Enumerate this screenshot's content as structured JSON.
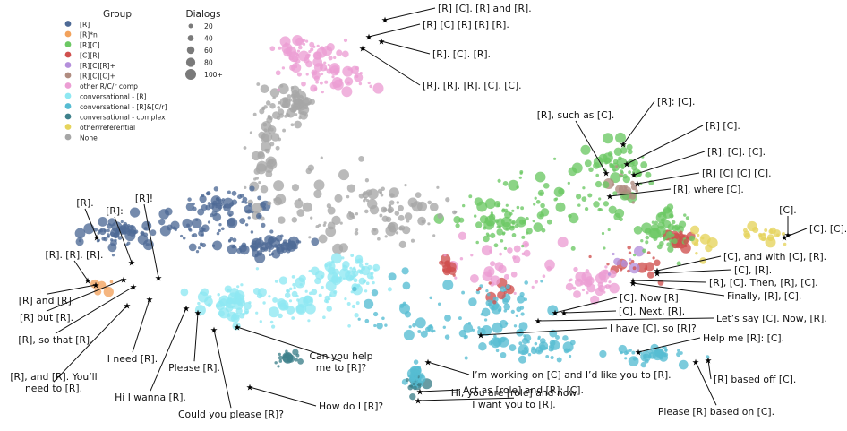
{
  "chart_data": {
    "type": "scatter",
    "title": "",
    "xlabel": "",
    "ylabel": "",
    "axes_visible": false,
    "legend_placement": "top-left",
    "group_legend": {
      "title": "Group",
      "entries": [
        {
          "label": "[R]",
          "color": "#4e6a96"
        },
        {
          "label": "[R]*n",
          "color": "#f2a25c"
        },
        {
          "label": "[R][C]",
          "color": "#6cc864"
        },
        {
          "label": "[C][R]",
          "color": "#d0504e"
        },
        {
          "label": "[R][C][R]+",
          "color": "#b48fdb"
        },
        {
          "label": "[R][C][C]+",
          "color": "#b08c80"
        },
        {
          "label": "other R/C/r comp",
          "color": "#ec9ed4"
        },
        {
          "label": "conversational - [R]",
          "color": "#8ee8f2"
        },
        {
          "label": "conversational - [R]&[C/r]",
          "color": "#56bcd2"
        },
        {
          "label": "conversational - complex",
          "color": "#3e808a"
        },
        {
          "label": "other/referential",
          "color": "#e6d45c"
        },
        {
          "label": "None",
          "color": "#a6a6a6"
        }
      ]
    },
    "size_legend": {
      "title": "Dialogs",
      "entries": [
        {
          "label": "20",
          "value": 20
        },
        {
          "label": "40",
          "value": 40
        },
        {
          "label": "60",
          "value": 60
        },
        {
          "label": "80",
          "value": 80
        },
        {
          "label": "100+",
          "value": 100
        }
      ]
    },
    "annotations": [
      {
        "text": "[R] [C]. [R] and [R]."
      },
      {
        "text": "[R] [C] [R] [R] [R]."
      },
      {
        "text": "[R]. [C]. [R]."
      },
      {
        "text": "[R]. [R]. [R]. [C]. [C]."
      },
      {
        "text": "[R], such as [C]."
      },
      {
        "text": "[R]: [C]."
      },
      {
        "text": "[R] [C]."
      },
      {
        "text": "[R]. [C]. [C]."
      },
      {
        "text": "[R] [C] [C] [C]."
      },
      {
        "text": "[R], where [C]."
      },
      {
        "text": "[C]."
      },
      {
        "text": "[C]. [C]."
      },
      {
        "text": "[C], and with [C], [R]."
      },
      {
        "text": "[C], [R]."
      },
      {
        "text": "[R], [C]. Then, [R], [C]."
      },
      {
        "text": "Finally, [R], [C]."
      },
      {
        "text": "[C]. Now [R]."
      },
      {
        "text": "[C]. Next, [R]."
      },
      {
        "text": "Let’s say [C]. Now, [R]."
      },
      {
        "text": "I have [C], so [R]?"
      },
      {
        "text": "Help me [R]: [C]."
      },
      {
        "text": "[R] based off [C]."
      },
      {
        "text": "Please [R] based on [C]."
      },
      {
        "text": "I’m working on [C] and I’d like you to [R]."
      },
      {
        "text": "Act as [role] and [R]: [C]."
      },
      {
        "text": "Hi, you are [role] and now I want you to [R]."
      },
      {
        "text": "How do I [R]?"
      },
      {
        "text": "Can you help me to [R]?"
      },
      {
        "text": "Could you please [R]?"
      },
      {
        "text": "Please [R]."
      },
      {
        "text": "Hi I wanna [R]."
      },
      {
        "text": "I need [R]."
      },
      {
        "text": "[R], and [R]. You’ll need to [R]."
      },
      {
        "text": "[R], so that [R]."
      },
      {
        "text": "[R] but [R]."
      },
      {
        "text": "[R] and [R]."
      },
      {
        "text": "[R]. [R]. [R]."
      },
      {
        "text": "[R]."
      },
      {
        "text": "[R]:"
      },
      {
        "text": "[R]!"
      }
    ]
  }
}
